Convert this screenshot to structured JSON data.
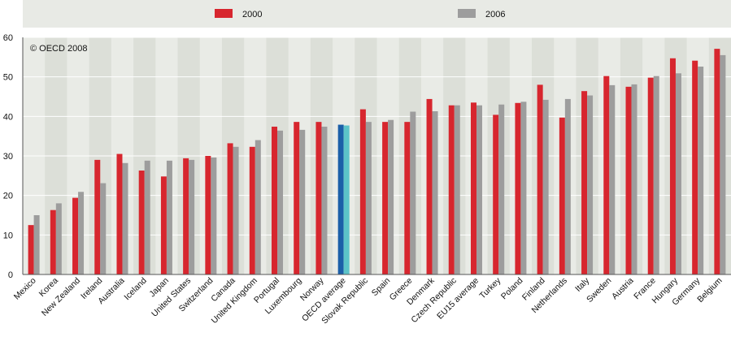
{
  "chart_data": {
    "type": "bar",
    "title": "",
    "xlabel": "",
    "ylabel": "",
    "copyright": "© OECD 2008",
    "ylim": [
      0,
      60
    ],
    "yticks": [
      0,
      10,
      20,
      30,
      40,
      50,
      60
    ],
    "legend_position": "top",
    "highlight_category": "OECD average",
    "categories": [
      "Mexico",
      "Korea",
      "New Zealand",
      "Ireland",
      "Australia",
      "Iceland",
      "Japan",
      "United States",
      "Switzerland",
      "Canada",
      "United Kingdom",
      "Portugal",
      "Luxembourg",
      "Norway",
      "OECD average",
      "Slovak Republic",
      "Spain",
      "Greece",
      "Denmark",
      "Czech Republic",
      "EU15 average",
      "Turkey",
      "Poland",
      "Finland",
      "Netherlands",
      "Italy",
      "Sweden",
      "Austria",
      "France",
      "Hungary",
      "Germany",
      "Belgium"
    ],
    "series": [
      {
        "name": "2000",
        "color": "#d7262e",
        "highlight_color": "#1b5fa8",
        "values": [
          12.5,
          16.3,
          19.4,
          29.0,
          30.5,
          26.3,
          24.8,
          29.4,
          30.0,
          33.2,
          32.3,
          37.4,
          38.6,
          38.6,
          37.9,
          41.8,
          38.6,
          38.6,
          44.4,
          42.8,
          43.5,
          40.4,
          43.4,
          48.0,
          39.7,
          46.4,
          50.2,
          47.5,
          49.8,
          54.7,
          54.1,
          57.1
        ]
      },
      {
        "name": "2006",
        "color": "#9d9d9d",
        "highlight_color": "#5cc3c8",
        "values": [
          15.0,
          18.0,
          20.9,
          23.1,
          28.2,
          28.8,
          28.8,
          29.0,
          29.6,
          32.3,
          34.0,
          36.4,
          36.6,
          37.4,
          37.7,
          38.6,
          39.1,
          41.2,
          41.3,
          42.8,
          42.8,
          43.0,
          43.7,
          44.2,
          44.4,
          45.3,
          47.9,
          48.1,
          50.2,
          50.9,
          52.6,
          55.5
        ]
      }
    ]
  }
}
